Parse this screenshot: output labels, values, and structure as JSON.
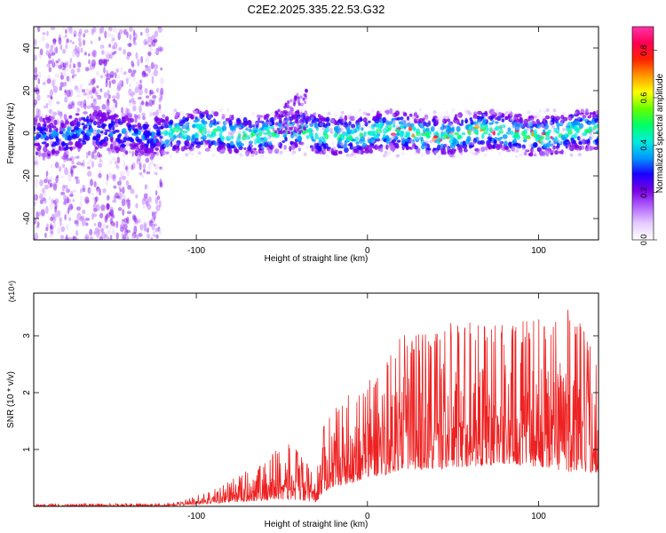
{
  "title": "C2E2.2025.335.22.53.G32",
  "colors": {
    "signal_line": "#ee2222",
    "axis": "#000000",
    "colorbar_stops": [
      "#ffffff",
      "#e6ccff",
      "#b366ff",
      "#7a00e6",
      "#1a00ff",
      "#0099ff",
      "#00eedd",
      "#00ff66",
      "#66ff00",
      "#ffff00",
      "#ff9900",
      "#ff2200",
      "#ff0055",
      "#ff33aa"
    ]
  },
  "chart_data": [
    {
      "type": "heatmap",
      "name": "spectrogram",
      "xlabel": "Height of straight line (km)",
      "ylabel": "Frequency (Hz)",
      "xlim": [
        -195,
        135
      ],
      "ylim": [
        -50,
        50
      ],
      "xticks": [
        -100,
        0,
        100
      ],
      "xtick_labels": [
        "-100",
        "0",
        "100"
      ],
      "yticks": [
        -40,
        -20,
        0,
        20,
        40
      ],
      "ytick_labels": [
        "-40",
        "-20",
        "0",
        "20",
        "40"
      ],
      "colorbar": {
        "label": "Normalized spectral amplitude",
        "range": [
          0,
          0.9
        ],
        "ticks": [
          0.0,
          0.2,
          0.4,
          0.6,
          0.8
        ],
        "tick_labels": [
          "0.0",
          "0.2",
          "0.4",
          "0.6",
          "0.8"
        ]
      },
      "features": {
        "noisy_band_x": [
          -195,
          -120
        ],
        "main_band_center_hz": 0,
        "main_band_halfwidth_hz": 5,
        "burst_x": [
          -55,
          -35
        ],
        "burst_max_hz": 22
      }
    },
    {
      "type": "line",
      "name": "snr",
      "xlabel": "Height of straight line (km)",
      "ylabel": "SNR (10 * v/v)",
      "scale_label": "(x10⁴)",
      "xlim": [
        -195,
        135
      ],
      "ylim": [
        0,
        3.75
      ],
      "xticks": [
        -100,
        0,
        100
      ],
      "xtick_labels": [
        "-100",
        "0",
        "100"
      ],
      "yticks": [
        1,
        2,
        3
      ],
      "ytick_labels": [
        "1",
        "2",
        "3"
      ],
      "envelope": {
        "x": [
          -195,
          -120,
          -110,
          -90,
          -75,
          -60,
          -50,
          -40,
          -30,
          -26,
          -20,
          -10,
          0,
          10,
          20,
          40,
          60,
          80,
          100,
          120,
          135
        ],
        "low": [
          0,
          0,
          0.02,
          0.05,
          0.08,
          0.1,
          0.12,
          0.1,
          0.08,
          0.25,
          0.35,
          0.4,
          0.5,
          0.55,
          0.65,
          0.65,
          0.7,
          0.75,
          0.7,
          0.6,
          0.6
        ],
        "high": [
          0.05,
          0.05,
          0.08,
          0.3,
          0.55,
          0.8,
          1.15,
          1.0,
          0.5,
          1.4,
          1.7,
          2.0,
          2.2,
          2.6,
          3.0,
          3.2,
          3.3,
          3.2,
          3.3,
          3.5,
          2.6
        ]
      }
    }
  ]
}
